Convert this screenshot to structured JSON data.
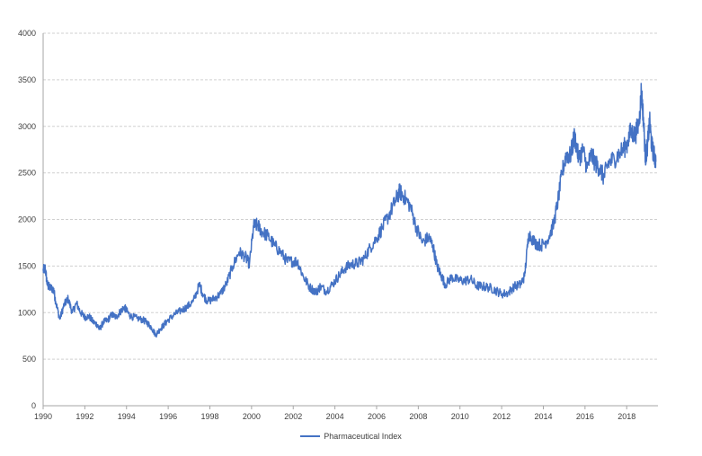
{
  "chart_data": {
    "type": "line",
    "title": "",
    "xlabel": "",
    "ylabel": "",
    "xlim": [
      1990,
      2019.5
    ],
    "ylim": [
      0,
      4000
    ],
    "x_ticks": [
      "1990",
      "1992",
      "1994",
      "1996",
      "1998",
      "2000",
      "2002",
      "2004",
      "2006",
      "2008",
      "2010",
      "2012",
      "2014",
      "2016",
      "2018"
    ],
    "y_ticks": [
      "0",
      "500",
      "1000",
      "1500",
      "2000",
      "2500",
      "3000",
      "3500",
      "4000"
    ],
    "grid": "horizontal dashed",
    "legend_position": "bottom",
    "series": [
      {
        "name": "Pharmaceutical Index",
        "color": "#4472c4",
        "x": [
          1990.0,
          1990.1,
          1990.2,
          1990.3,
          1990.5,
          1990.6,
          1990.8,
          1991.0,
          1991.2,
          1991.4,
          1991.6,
          1991.8,
          1992.0,
          1992.2,
          1992.4,
          1992.6,
          1992.7,
          1992.9,
          1993.1,
          1993.3,
          1993.5,
          1993.7,
          1993.9,
          1994.0,
          1994.2,
          1994.5,
          1994.8,
          1995.0,
          1995.2,
          1995.4,
          1995.6,
          1995.8,
          1996.0,
          1996.3,
          1996.6,
          1996.9,
          1997.2,
          1997.5,
          1997.7,
          1997.9,
          1998.2,
          1998.5,
          1998.8,
          1999.1,
          1999.4,
          1999.7,
          1999.9,
          2000.1,
          2000.3,
          2000.5,
          2000.8,
          2001.1,
          2001.4,
          2001.7,
          2002.0,
          2002.2,
          2002.5,
          2002.8,
          2003.1,
          2003.3,
          2003.6,
          2003.9,
          2004.2,
          2004.5,
          2004.8,
          2005.1,
          2005.4,
          2005.7,
          2006.0,
          2006.3,
          2006.6,
          2006.9,
          2007.1,
          2007.3,
          2007.6,
          2007.9,
          2008.2,
          2008.5,
          2008.7,
          2008.9,
          2009.1,
          2009.3,
          2009.6,
          2009.9,
          2010.2,
          2010.5,
          2010.8,
          2011.1,
          2011.4,
          2011.7,
          2012.0,
          2012.3,
          2012.6,
          2012.9,
          2013.1,
          2013.3,
          2013.6,
          2013.9,
          2014.2,
          2014.5,
          2014.7,
          2014.9,
          2015.1,
          2015.3,
          2015.5,
          2015.7,
          2015.9,
          2016.1,
          2016.3,
          2016.5,
          2016.7,
          2016.9,
          2017.1,
          2017.4,
          2017.7,
          2018.0,
          2018.2,
          2018.4,
          2018.6,
          2018.7,
          2018.8,
          2018.9,
          2019.0,
          2019.1,
          2019.2,
          2019.3,
          2019.4
        ],
        "values": [
          1450,
          1480,
          1300,
          1270,
          1250,
          1120,
          930,
          1080,
          1150,
          1000,
          1100,
          1000,
          950,
          960,
          900,
          870,
          820,
          900,
          920,
          980,
          950,
          1010,
          1060,
          1020,
          960,
          940,
          920,
          890,
          840,
          760,
          820,
          870,
          920,
          980,
          1020,
          1060,
          1120,
          1300,
          1180,
          1120,
          1150,
          1200,
          1310,
          1500,
          1650,
          1600,
          1520,
          1930,
          1940,
          1870,
          1820,
          1720,
          1650,
          1550,
          1550,
          1550,
          1380,
          1270,
          1220,
          1280,
          1230,
          1310,
          1400,
          1480,
          1520,
          1530,
          1580,
          1700,
          1800,
          1920,
          2050,
          2200,
          2300,
          2250,
          2150,
          1920,
          1750,
          1810,
          1720,
          1500,
          1400,
          1300,
          1380,
          1350,
          1340,
          1360,
          1290,
          1280,
          1270,
          1240,
          1200,
          1210,
          1280,
          1300,
          1390,
          1850,
          1750,
          1720,
          1780,
          1950,
          2200,
          2500,
          2700,
          2680,
          2900,
          2650,
          2750,
          2550,
          2700,
          2600,
          2550,
          2450,
          2600,
          2650,
          2720,
          2800,
          2950,
          2900,
          3050,
          3380,
          3100,
          2650,
          2800,
          3050,
          2800,
          2700,
          2620
        ]
      }
    ]
  }
}
